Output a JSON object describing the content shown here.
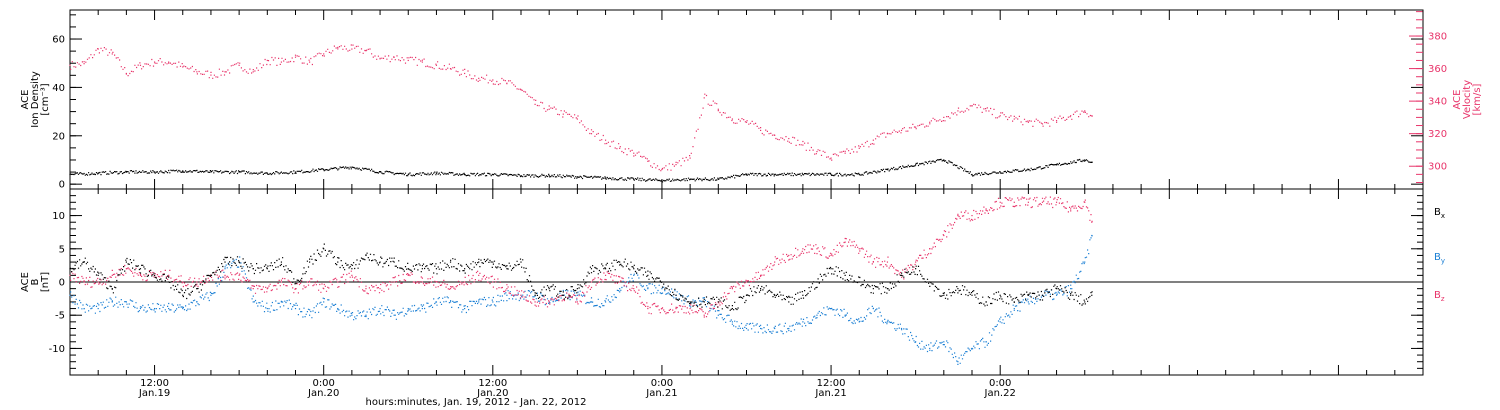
{
  "colors": {
    "density": "#000000",
    "velocity": "#e8346a",
    "bx": "#000000",
    "by": "#1a7fd4",
    "bz": "#e8346a",
    "axis": "#000000"
  },
  "footer": {
    "xlabel": "hours:minutes, Jan. 19, 2012 - Jan. 22, 2012"
  },
  "chart_data": [
    {
      "type": "scatter",
      "panel": "top",
      "ylabel_left": [
        "ACE",
        "Ion Density",
        "[cm⁻³]"
      ],
      "ylabel_right": [
        "ACE",
        "Velocity",
        "[km/s]"
      ],
      "x_unit": "hours since Jan. 19, 2012 00:00",
      "xlim": [
        6,
        102
      ],
      "ylim_left": [
        -2,
        72
      ],
      "yticks_left": [
        "0",
        "20",
        "40",
        "60"
      ],
      "ylim_right": [
        286,
        396
      ],
      "yticks_right": [
        "300",
        "320",
        "340",
        "360",
        "380"
      ],
      "x_ticks": [
        {
          "time": "12:00",
          "date": "Jan.19",
          "t": 12
        },
        {
          "time": "0:00",
          "date": "Jan.20",
          "t": 24
        },
        {
          "time": "12:00",
          "date": "Jan.20",
          "t": 36
        },
        {
          "time": "0:00",
          "date": "Jan.21",
          "t": 48
        },
        {
          "time": "12:00",
          "date": "Jan.21",
          "t": 60
        },
        {
          "time": "0:00",
          "date": "Jan.22",
          "t": 72
        }
      ],
      "series": [
        {
          "axis": "left",
          "color_key": "density",
          "x": [
            6,
            8,
            10,
            12,
            14,
            16,
            18,
            20,
            22,
            24,
            26,
            28,
            30,
            32,
            34,
            36,
            38,
            40,
            42,
            44,
            46,
            48,
            50,
            52,
            54,
            56,
            58,
            60,
            62,
            64,
            66,
            68,
            70,
            72,
            74,
            76,
            78,
            78.5
          ],
          "y": [
            4,
            4.5,
            5,
            5,
            5.5,
            5,
            5,
            4.5,
            5,
            6,
            7,
            5,
            4,
            4.5,
            4,
            4,
            3.5,
            3.5,
            3,
            2.5,
            2,
            1.5,
            2,
            2,
            4,
            4,
            4,
            4,
            4,
            6,
            8,
            10,
            4,
            5,
            6,
            8,
            10,
            9
          ]
        },
        {
          "axis": "right",
          "color_key": "velocity",
          "x": [
            6,
            7,
            8,
            9,
            10,
            11,
            12,
            13,
            14,
            15,
            16,
            17,
            18,
            19,
            20,
            21,
            22,
            23,
            24,
            25,
            26,
            27,
            28,
            29,
            30,
            31,
            32,
            33,
            34,
            35,
            36,
            37,
            38,
            39,
            40,
            41,
            42,
            43,
            44,
            45,
            46,
            47,
            48,
            49,
            50,
            51,
            52,
            53,
            54,
            55,
            56,
            57,
            58,
            59,
            60,
            61,
            62,
            63,
            64,
            65,
            66,
            67,
            68,
            69,
            70,
            71,
            72,
            73,
            74,
            75,
            76,
            77,
            78,
            78.5
          ],
          "y": [
            362,
            363,
            372,
            369,
            357,
            362,
            364,
            364,
            361,
            358,
            356,
            358,
            362,
            358,
            365,
            364,
            367,
            364,
            369,
            373,
            372,
            371,
            366,
            367,
            365,
            364,
            362,
            360,
            357,
            354,
            353,
            351,
            347,
            338,
            335,
            332,
            329,
            320,
            316,
            311,
            308,
            303,
            298,
            301,
            305,
            342,
            335,
            329,
            327,
            322,
            319,
            317,
            313,
            309,
            305,
            308,
            311,
            316,
            320,
            322,
            324,
            327,
            330,
            334,
            337,
            334,
            331,
            329,
            327,
            326,
            328,
            331,
            334,
            331
          ]
        }
      ]
    },
    {
      "type": "scatter",
      "panel": "bottom",
      "ylabel_left": [
        "ACE",
        "B",
        "[nT]"
      ],
      "x_unit": "hours since Jan. 19, 2012 00:00",
      "xlim": [
        6,
        102
      ],
      "ylim": [
        -14,
        14
      ],
      "yticks": [
        "-10",
        "-5",
        "0",
        "5",
        "10"
      ],
      "legend": [
        "Bx",
        "By",
        "Bz"
      ],
      "legend_position": "right",
      "zero_line": true,
      "series": [
        {
          "name": "Bx",
          "color_key": "bx",
          "x": [
            6,
            7,
            8,
            9,
            10,
            11,
            12,
            13,
            14,
            15,
            16,
            17,
            18,
            19,
            20,
            21,
            22,
            23,
            24,
            25,
            26,
            27,
            28,
            29,
            30,
            31,
            32,
            33,
            34,
            35,
            36,
            37,
            38,
            39,
            40,
            41,
            42,
            43,
            44,
            45,
            46,
            47,
            48,
            49,
            50,
            51,
            52,
            53,
            54,
            55,
            56,
            57,
            58,
            59,
            60,
            61,
            62,
            63,
            64,
            65,
            66,
            67,
            68,
            69,
            70,
            71,
            72,
            73,
            74,
            75,
            76,
            77,
            78,
            78.5
          ],
          "y": [
            2,
            3,
            1,
            -1,
            3,
            2,
            1,
            0,
            -2,
            -1,
            1,
            3,
            3,
            2,
            2,
            3,
            0,
            3,
            5,
            3,
            2,
            4,
            3,
            3,
            2,
            2,
            2,
            3,
            2,
            3,
            3,
            2,
            3,
            -2,
            -1,
            -2,
            -1,
            2,
            2,
            3,
            2,
            1,
            0,
            -2,
            -3,
            -3,
            -3,
            -4,
            -2,
            -1,
            -2,
            -3,
            -2,
            0,
            2,
            1,
            0,
            -1,
            -1,
            1,
            2,
            0,
            -2,
            -1,
            -2,
            -3,
            -2,
            -3,
            -2,
            -2,
            -1,
            -2,
            -3,
            -2
          ]
        },
        {
          "name": "By",
          "color_key": "by",
          "x": [
            6,
            7,
            8,
            9,
            10,
            11,
            12,
            13,
            14,
            15,
            16,
            17,
            18,
            19,
            20,
            21,
            22,
            23,
            24,
            25,
            26,
            27,
            28,
            29,
            30,
            31,
            32,
            33,
            34,
            35,
            36,
            37,
            38,
            39,
            40,
            41,
            42,
            43,
            44,
            45,
            46,
            47,
            48,
            49,
            50,
            51,
            52,
            53,
            54,
            55,
            56,
            57,
            58,
            59,
            60,
            61,
            62,
            63,
            64,
            65,
            66,
            67,
            68,
            69,
            70,
            71,
            72,
            73,
            74,
            75,
            76,
            77,
            78,
            78.5
          ],
          "y": [
            -2,
            -4,
            -4,
            -3,
            -3,
            -4,
            -4,
            -4,
            -4,
            -3,
            -2,
            2,
            3,
            -3,
            -4,
            -3,
            -4,
            -5,
            -3,
            -4,
            -5,
            -5,
            -4,
            -5,
            -4,
            -4,
            -3,
            -3,
            -4,
            -3,
            -3,
            -2,
            -2,
            -2,
            -3,
            -2,
            -2,
            -3,
            -3,
            -1,
            1,
            -1,
            -1,
            -2,
            -3,
            -3,
            -5,
            -6,
            -7,
            -7,
            -7,
            -7,
            -6,
            -5,
            -4,
            -5,
            -6,
            -4,
            -6,
            -7,
            -9,
            -10,
            -9,
            -12,
            -10,
            -9,
            -6,
            -4,
            -3,
            -2,
            -2,
            -1,
            3,
            7
          ]
        },
        {
          "name": "Bz",
          "color_key": "bz",
          "x": [
            6,
            7,
            8,
            9,
            10,
            11,
            12,
            13,
            14,
            15,
            16,
            17,
            18,
            19,
            20,
            21,
            22,
            23,
            24,
            25,
            26,
            27,
            28,
            29,
            30,
            31,
            32,
            33,
            34,
            35,
            36,
            37,
            38,
            39,
            40,
            41,
            42,
            43,
            44,
            45,
            46,
            47,
            48,
            49,
            50,
            51,
            52,
            53,
            54,
            55,
            56,
            57,
            58,
            59,
            60,
            61,
            62,
            63,
            64,
            65,
            66,
            67,
            68,
            69,
            70,
            71,
            72,
            73,
            74,
            75,
            76,
            77,
            78,
            78.5
          ],
          "y": [
            1,
            0,
            0,
            1,
            2,
            1,
            1,
            1,
            0,
            0,
            1,
            1,
            1,
            -1,
            -1,
            0,
            -1,
            0,
            -1,
            0,
            1,
            -1,
            -1,
            0,
            1,
            0,
            0,
            -1,
            0,
            1,
            0,
            -1,
            -2,
            -3,
            -3,
            -2,
            -3,
            0,
            1,
            0,
            -1,
            -4,
            -4,
            -4,
            -4,
            -5,
            -3,
            -1,
            0,
            1,
            3,
            4,
            5,
            5,
            4,
            6,
            5,
            3,
            3,
            1,
            3,
            5,
            7,
            10,
            10,
            11,
            12,
            12,
            12,
            12,
            12,
            11,
            12,
            9
          ]
        }
      ]
    }
  ]
}
